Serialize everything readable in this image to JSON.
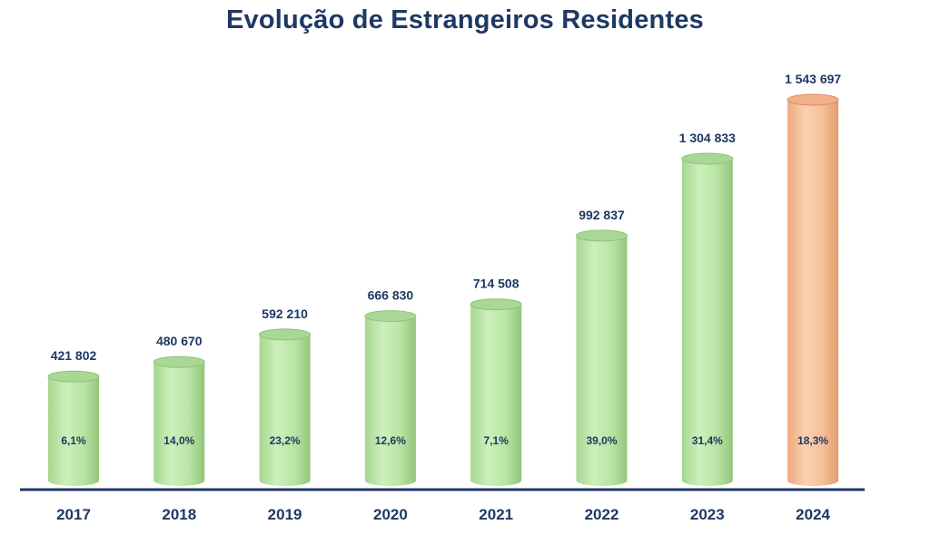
{
  "chart_data": {
    "type": "bar",
    "title": "Evolução de Estrangeiros Residentes",
    "xlabel": "",
    "ylabel": "",
    "ylim": [
      0,
      1600000
    ],
    "grid": false,
    "legend": "none",
    "categories": [
      "2017",
      "2018",
      "2019",
      "2020",
      "2021",
      "2022",
      "2023",
      "2024"
    ],
    "series": [
      {
        "name": "Estrangeiros Residentes",
        "values": [
          421802,
          480670,
          592210,
          666830,
          714508,
          992837,
          1304833,
          1543697
        ],
        "value_labels": [
          "421 802",
          "480 670",
          "592 210",
          "666 830",
          "714 508",
          "992 837",
          "1 304 833",
          "1 543 697"
        ],
        "growth_labels": [
          "6,1%",
          "14,0%",
          "23,2%",
          "12,6%",
          "7,1%",
          "39,0%",
          "31,4%",
          "18,3%"
        ]
      }
    ],
    "colors": {
      "bar": "#b9e6a6",
      "bar_highlight": "#f6bf98",
      "text": "#1f3864",
      "axis": "#1f3864"
    },
    "highlight_category": "2024"
  }
}
